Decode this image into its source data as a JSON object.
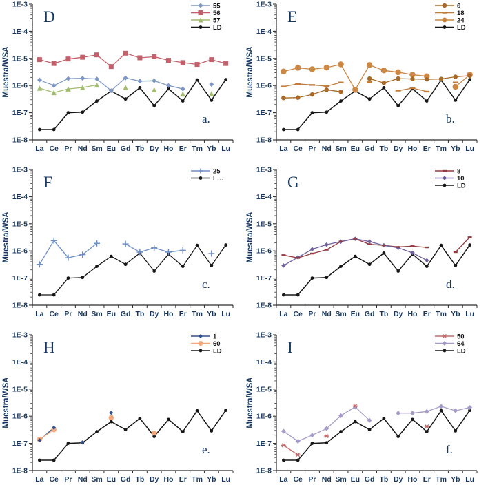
{
  "figure": {
    "ylabel": "Muestra/WSA",
    "y_tick_labels": [
      "1E-3",
      "1E-4",
      "1E-5",
      "1E-6",
      "1E-7",
      "1E-8"
    ],
    "categories": [
      "La",
      "Ce",
      "Pr",
      "Nd",
      "Sm",
      "Eu",
      "Gd",
      "Tb",
      "Dy",
      "Ho",
      "Er",
      "Tm",
      "Yb",
      "Lu"
    ]
  },
  "chart_data": [
    {
      "type": "line",
      "panel_letter": "D",
      "corner_label": "a.",
      "log_scale": true,
      "ylim": [
        1e-08,
        0.001
      ],
      "ylabel": "Muestra/WSA",
      "legend_position": "top-right",
      "series": [
        {
          "name": "55",
          "color": "#7d97c6",
          "marker": "diamond",
          "marker_size": 7,
          "values": [
            1.6e-06,
            1e-06,
            1.8e-06,
            1.85e-06,
            1.75e-06,
            6.5e-07,
            1.9e-06,
            1.45e-06,
            1.5e-06,
            1e-06,
            7.5e-07,
            null,
            1.1e-06,
            null
          ]
        },
        {
          "name": "56",
          "color": "#c2616b",
          "marker": "square",
          "marker_size": 7,
          "values": [
            9e-06,
            6.5e-06,
            9.5e-06,
            1.1e-05,
            1.35e-05,
            5e-06,
            1.55e-05,
            1.05e-05,
            1.15e-05,
            8.5e-06,
            7e-06,
            6e-06,
            9e-06,
            6.5e-06
          ]
        },
        {
          "name": "57",
          "color": "#a2bc70",
          "marker": "triangle",
          "marker_size": 7.5,
          "values": [
            8e-07,
            5.5e-07,
            7.5e-07,
            8.5e-07,
            1.05e-06,
            null,
            8.5e-07,
            null,
            7e-07,
            null,
            4.9e-07,
            null,
            5e-07,
            null
          ]
        },
        {
          "name": "LD",
          "color": "#161616",
          "marker": "circle",
          "marker_size": 4.8,
          "values": [
            2.4e-08,
            2.4e-08,
            1e-07,
            1.05e-07,
            2.7e-07,
            6.3e-07,
            3.2e-07,
            8.3e-07,
            1.8e-07,
            7.6e-07,
            2.7e-07,
            1.6e-06,
            2.9e-07,
            1.65e-06
          ]
        }
      ]
    },
    {
      "type": "line",
      "panel_letter": "E",
      "corner_label": "b.",
      "log_scale": true,
      "ylim": [
        1e-08,
        0.001
      ],
      "ylabel": "Muestra/WSA",
      "legend_position": "top-right",
      "series": [
        {
          "name": "6",
          "color": "#aa6a27",
          "marker": "circle",
          "marker_size": 6.5,
          "values": [
            3.5e-07,
            3.6e-07,
            4.7e-07,
            7e-07,
            5.9e-07,
            null,
            1.8e-06,
            1.25e-06,
            1.8e-06,
            1.75e-06,
            1.7e-06,
            1.75e-06,
            2.1e-06,
            2.3e-06
          ]
        },
        {
          "name": "18",
          "color": "#c07c3a",
          "marker": "dash",
          "marker_size": 8,
          "values": [
            9.2e-07,
            1.15e-06,
            1.05e-06,
            9.5e-07,
            1.3e-06,
            null,
            1.35e-06,
            null,
            6.5e-07,
            8e-07,
            6e-07,
            null,
            1.3e-06,
            null
          ]
        },
        {
          "name": "24",
          "color": "#cb8743",
          "marker": "circle",
          "marker_size": 8.5,
          "values": [
            3.3e-06,
            4.5e-06,
            4e-06,
            4.6e-06,
            6e-06,
            7e-07,
            5.7e-06,
            3.6e-06,
            3.1e-06,
            2.5e-06,
            2.2e-06,
            null,
            9e-07,
            2.5e-06
          ]
        },
        {
          "name": "LD",
          "color": "#161616",
          "marker": "circle",
          "marker_size": 4.8,
          "values": [
            2.4e-08,
            2.4e-08,
            1e-07,
            1.05e-07,
            2.7e-07,
            6.3e-07,
            3.2e-07,
            8.3e-07,
            1.8e-07,
            7.6e-07,
            2.7e-07,
            1.6e-06,
            2.9e-07,
            1.65e-06
          ]
        }
      ]
    },
    {
      "type": "line",
      "panel_letter": "F",
      "corner_label": "c.",
      "log_scale": true,
      "ylim": [
        1e-08,
        0.001
      ],
      "ylabel": "Muestra/WSA",
      "legend_position": "top-right",
      "series": [
        {
          "name": "25",
          "color": "#6e8fc5",
          "marker": "plus",
          "marker_size": 9,
          "values": [
            3.2e-07,
            2.4e-06,
            5.6e-07,
            7.3e-07,
            1.9e-06,
            null,
            1.8e-06,
            9e-07,
            1.3e-06,
            9e-07,
            1.05e-06,
            null,
            8e-07,
            null
          ]
        },
        {
          "name": "L…",
          "color": "#161616",
          "marker": "circle",
          "marker_size": 4.8,
          "values": [
            2.4e-08,
            2.4e-08,
            1e-07,
            1.05e-07,
            2.7e-07,
            6.3e-07,
            3.2e-07,
            8.3e-07,
            1.8e-07,
            7.6e-07,
            2.7e-07,
            1.6e-06,
            2.9e-07,
            1.65e-06
          ]
        }
      ]
    },
    {
      "type": "line",
      "panel_letter": "G",
      "corner_label": "d.",
      "log_scale": true,
      "ylim": [
        1e-08,
        0.001
      ],
      "ylabel": "Muestra/WSA",
      "legend_position": "top-right",
      "series": [
        {
          "name": "8",
          "color": "#93383e",
          "marker": "dash",
          "marker_size": 6,
          "values": [
            7e-07,
            5.5e-07,
            8e-07,
            1.1e-06,
            2.2e-06,
            2.8e-06,
            1.75e-06,
            1.6e-06,
            1.4e-06,
            1.5e-06,
            1.35e-06,
            null,
            9e-07,
            3.2e-06
          ]
        },
        {
          "name": "10",
          "color": "#71619f",
          "marker": "diamond",
          "marker_size": 6.5,
          "values": [
            2.9e-07,
            5.8e-07,
            1.15e-06,
            1.7e-06,
            2.2e-06,
            2.8e-06,
            2.2e-06,
            1.6e-06,
            1.3e-06,
            8.5e-07,
            4.5e-07,
            null,
            null,
            null
          ]
        },
        {
          "name": "LD",
          "color": "#161616",
          "marker": "circle",
          "marker_size": 4.8,
          "values": [
            2.4e-08,
            2.4e-08,
            1e-07,
            1.05e-07,
            2.7e-07,
            6.3e-07,
            3.2e-07,
            8.3e-07,
            1.8e-07,
            7.6e-07,
            2.7e-07,
            1.6e-06,
            2.9e-07,
            1.65e-06
          ]
        }
      ]
    },
    {
      "type": "line",
      "panel_letter": "H",
      "corner_label": "e.",
      "log_scale": true,
      "ylim": [
        1e-08,
        0.001
      ],
      "ylabel": "Muestra/WSA",
      "legend_position": "top-right",
      "series": [
        {
          "name": "1",
          "color": "#31508e",
          "marker": "diamond",
          "marker_size": 6,
          "values": [
            1.3e-07,
            3.8e-07,
            null,
            1.1e-07,
            null,
            1.35e-06,
            null,
            null,
            null,
            null,
            null,
            null,
            null,
            null
          ]
        },
        {
          "name": "60",
          "color": "#f4a97c",
          "marker": "circle",
          "marker_size": 7.5,
          "values": [
            1.4e-07,
            3.2e-07,
            null,
            null,
            null,
            8.8e-07,
            null,
            null,
            2.4e-07,
            null,
            null,
            null,
            null,
            null
          ]
        },
        {
          "name": "LD",
          "color": "#161616",
          "marker": "circle",
          "marker_size": 4.8,
          "values": [
            2.4e-08,
            2.4e-08,
            1e-07,
            1.05e-07,
            2.7e-07,
            6.3e-07,
            3.2e-07,
            8.3e-07,
            1.8e-07,
            7.6e-07,
            2.7e-07,
            1.6e-06,
            2.9e-07,
            1.65e-06
          ]
        }
      ]
    },
    {
      "type": "line",
      "panel_letter": "I",
      "corner_label": "f.",
      "log_scale": true,
      "ylim": [
        1e-08,
        0.001
      ],
      "ylabel": "Muestra/WSA",
      "legend_position": "top-right",
      "series": [
        {
          "name": "50",
          "color": "#c46a6a",
          "marker": "star",
          "marker_size": 7,
          "values": [
            8.5e-08,
            3.8e-08,
            null,
            1.85e-07,
            null,
            2.4e-06,
            null,
            null,
            null,
            null,
            4.2e-07,
            null,
            null,
            null
          ]
        },
        {
          "name": "64",
          "color": "#a69bc8",
          "marker": "diamond",
          "marker_size": 7,
          "values": [
            2.8e-07,
            1.2e-07,
            2e-07,
            3.5e-07,
            1.05e-06,
            2.2e-06,
            7e-07,
            null,
            1.3e-06,
            1.3e-06,
            1.5e-06,
            2.3e-06,
            1.6e-06,
            2.1e-06
          ]
        },
        {
          "name": "LD",
          "color": "#161616",
          "marker": "circle",
          "marker_size": 4.8,
          "values": [
            2.4e-08,
            2.4e-08,
            1e-07,
            1.05e-07,
            2.7e-07,
            6.3e-07,
            3.2e-07,
            8.3e-07,
            1.8e-07,
            7.6e-07,
            2.7e-07,
            1.6e-06,
            2.9e-07,
            1.65e-06
          ]
        }
      ]
    }
  ]
}
